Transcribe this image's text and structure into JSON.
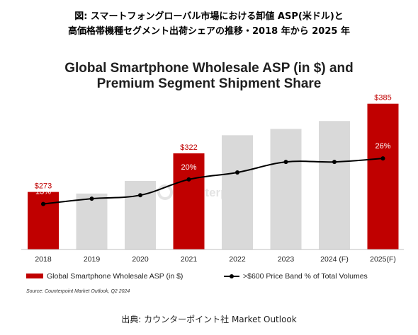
{
  "caption": {
    "line1": "図: スマートフォングローバル市場における卸値 ASP(米ドル)と",
    "line2": "高価格帯機種セグメント出荷シェアの推移・2018 年から 2025 年"
  },
  "footer": "出典: カウンターポイント社 Market Outlook",
  "chart_data": {
    "type": "bar",
    "title_line1": "Global Smartphone Wholesale ASP (in $) and",
    "title_line2": "Premium Segment Shipment Share",
    "categories": [
      "2018",
      "2019",
      "2020",
      "2021",
      "2022",
      "2023",
      "2024 (F)",
      "2025(F)"
    ],
    "series": [
      {
        "name": "Global Smartphone Wholesale ASP (in $)",
        "type": "bar",
        "values": [
          273,
          271,
          287,
          322,
          345,
          353,
          363,
          385
        ]
      },
      {
        "name": ">$600 Price Band % of Total Volumes",
        "type": "line",
        "values": [
          13,
          14.5,
          15.5,
          20,
          22,
          25,
          25,
          26
        ]
      }
    ],
    "highlighted_bars": [
      0,
      3,
      7
    ],
    "bar_labels": [
      "$273",
      "",
      "",
      "$322",
      "",
      "",
      "",
      "$385"
    ],
    "line_labels": [
      "13%",
      "",
      "",
      "20%",
      "",
      "",
      "",
      "26%"
    ],
    "bar_ylim": [
      200,
      400
    ],
    "line_ylim": [
      0,
      45
    ],
    "colors": {
      "highlight": "#c00000",
      "bar": "#d9d9d9",
      "line": "#000000"
    },
    "legend_position": "bottom",
    "source": "Source: Counterpoint Market Outlook, Q2 2024",
    "watermark": "Counterpoint"
  }
}
